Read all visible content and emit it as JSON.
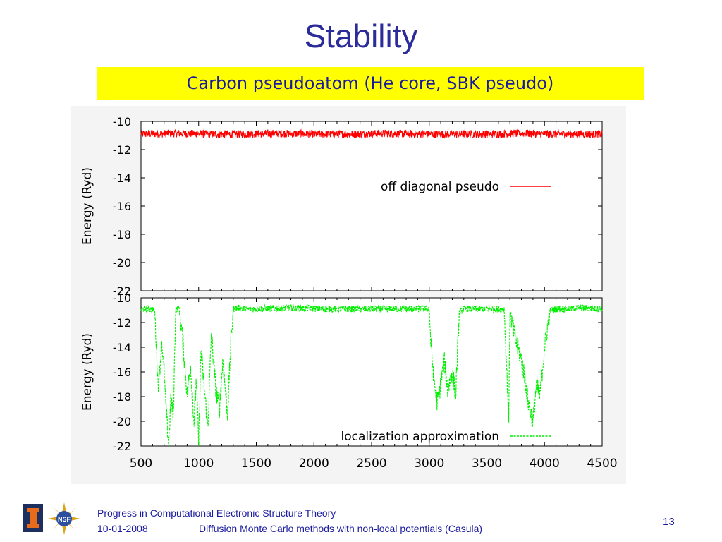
{
  "slide": {
    "title": "Stability",
    "subtitle": "Carbon pseudoatom (He core, SBK pseudo)"
  },
  "footer": {
    "line1": "Progress in Computational Electronic Structure Theory",
    "date": "10-01-2008",
    "line2": "Diffusion Monte Carlo methods with non-local potentials  (Casula)",
    "page_number": "13",
    "logos": [
      "illinois-logo",
      "nsf-logo"
    ]
  },
  "colors": {
    "title": "#2b2b9a",
    "subtitle_bg": "#ffff00",
    "series_red": "#ff0000",
    "series_green": "#00ee00",
    "footer_text": "#1a1aa0"
  },
  "chart_data": [
    {
      "type": "line",
      "xlabel": "",
      "ylabel": "Energy (Ryd)",
      "xlim": [
        500,
        4500
      ],
      "ylim": [
        -22,
        -10
      ],
      "yticks": [
        "-10",
        "-12",
        "-14",
        "-16",
        "-18",
        "-20",
        "-22"
      ],
      "xticks": [],
      "grid": false,
      "legend_position": "upper-right",
      "series": [
        {
          "name": "off diagonal pseudo",
          "color": "#ff0000",
          "style": "solid",
          "base": -10.9,
          "x": [
            500,
            800,
            1100,
            1400,
            1700,
            2000,
            2300,
            2600,
            2900,
            3200,
            3500,
            3800,
            4100,
            4500
          ],
          "values": [
            -10.9,
            -10.85,
            -10.9,
            -10.9,
            -10.85,
            -10.9,
            -10.9,
            -10.85,
            -10.9,
            -10.9,
            -10.9,
            -10.85,
            -10.9,
            -10.9
          ]
        }
      ]
    },
    {
      "type": "line",
      "xlabel": "",
      "ylabel": "Energy (Ryd)",
      "xlim": [
        500,
        4500
      ],
      "ylim": [
        -22,
        -10
      ],
      "yticks": [
        "-10",
        "-12",
        "-14",
        "-16",
        "-18",
        "-20",
        "-22"
      ],
      "xticks": [
        "500",
        "1000",
        "1500",
        "2000",
        "2500",
        "3000",
        "3500",
        "4000",
        "4500"
      ],
      "grid": false,
      "legend_position": "lower-right",
      "series": [
        {
          "name": "localization approximation",
          "color": "#00ee00",
          "style": "dashed",
          "base": -10.9,
          "x": [
            500,
            600,
            620,
            650,
            680,
            700,
            720,
            740,
            760,
            780,
            800,
            830,
            860,
            900,
            930,
            960,
            980,
            1000,
            1020,
            1050,
            1080,
            1110,
            1150,
            1180,
            1210,
            1250,
            1280,
            1300,
            1350,
            1400,
            1500,
            1800,
            2100,
            2500,
            2600,
            3000,
            3010,
            3040,
            3070,
            3100,
            3130,
            3160,
            3200,
            3230,
            3260,
            3300,
            3500,
            3650,
            3690,
            3700,
            3750,
            3800,
            3830,
            3860,
            3900,
            3930,
            3960,
            4000,
            4050,
            4100,
            4200,
            4300,
            4500
          ],
          "values": [
            -10.9,
            -10.9,
            -11.2,
            -17.3,
            -13.5,
            -16.0,
            -19.5,
            -21.8,
            -18.0,
            -19.8,
            -11.0,
            -10.8,
            -13.2,
            -17.8,
            -15.5,
            -20.1,
            -16.5,
            -21.8,
            -14.2,
            -17.5,
            -20.4,
            -13.0,
            -17.5,
            -19.0,
            -15.0,
            -19.5,
            -13.5,
            -10.9,
            -10.8,
            -10.9,
            -10.9,
            -10.8,
            -10.9,
            -10.9,
            -10.9,
            -10.9,
            -13.0,
            -16.6,
            -18.5,
            -17.0,
            -15.0,
            -17.5,
            -16.0,
            -17.8,
            -11.2,
            -10.9,
            -10.9,
            -10.9,
            -19.7,
            -11.2,
            -13.5,
            -15.0,
            -16.5,
            -18.5,
            -20.0,
            -17.0,
            -18.0,
            -14.0,
            -11.0,
            -10.9,
            -10.9,
            -10.8,
            -10.9
          ]
        }
      ]
    }
  ]
}
